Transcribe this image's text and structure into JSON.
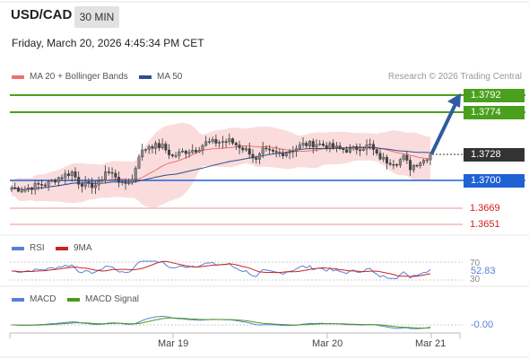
{
  "header": {
    "pair": "USD/CAD",
    "timeframe": "30 MIN",
    "timestamp": "Friday, March 20, 2026 4:45:34 PM CET",
    "credit": "Research © 2026 Trading Central"
  },
  "legend": {
    "ma20": "MA 20 + Bollinger Bands",
    "ma50": "MA 50",
    "rsi": "RSI",
    "ma9": "9MA",
    "macd": "MACD",
    "signal": "MACD Signal"
  },
  "colors": {
    "ma20": "#f07070",
    "ma50": "#2c4f8f",
    "bands": "#fadcdc",
    "resistance": "#4aa01c",
    "pivot": "#1f62d4",
    "support": "#e06b6b",
    "current": "#333333",
    "arrow": "#2e5c9e",
    "rsi": "#5a7fd6",
    "rsi_ma": "#cc2222",
    "macd": "#5a7fd6",
    "macd_signal": "#4a9a1a"
  },
  "chart_data": {
    "type": "candlestick",
    "x_ticks": [
      "Mar 19",
      "Mar 20",
      "Mar 21"
    ],
    "price_range": [
      1.364,
      1.38
    ],
    "levels": {
      "resistance_2": "1.3792",
      "resistance_1": "1.3774",
      "current": "1.3728",
      "pivot": "1.3700",
      "support_1": "1.3669",
      "support_2": "1.3651"
    },
    "close_anchors": [
      [
        0,
        1.3691
      ],
      [
        3,
        1.3689
      ],
      [
        8,
        1.3694
      ],
      [
        11,
        1.3696
      ],
      [
        14,
        1.3702
      ],
      [
        18,
        1.3708
      ],
      [
        20,
        1.3697
      ],
      [
        23,
        1.3693
      ],
      [
        26,
        1.3695
      ],
      [
        28,
        1.3709
      ],
      [
        31,
        1.3704
      ],
      [
        33,
        1.3694
      ],
      [
        36,
        1.37
      ],
      [
        38,
        1.3727
      ],
      [
        41,
        1.3737
      ],
      [
        45,
        1.3736
      ],
      [
        48,
        1.3725
      ],
      [
        51,
        1.373
      ],
      [
        55,
        1.3733
      ],
      [
        58,
        1.374
      ],
      [
        62,
        1.3741
      ],
      [
        65,
        1.3742
      ],
      [
        68,
        1.3736
      ],
      [
        71,
        1.373
      ],
      [
        73,
        1.372
      ],
      [
        75,
        1.3731
      ],
      [
        78,
        1.3729
      ],
      [
        80,
        1.3728
      ],
      [
        83,
        1.3731
      ],
      [
        87,
        1.3738
      ],
      [
        91,
        1.3739
      ],
      [
        95,
        1.3736
      ],
      [
        98,
        1.3733
      ],
      [
        101,
        1.3732
      ],
      [
        104,
        1.3735
      ],
      [
        107,
        1.3737
      ],
      [
        109,
        1.3726
      ],
      [
        112,
        1.372
      ],
      [
        115,
        1.3719
      ],
      [
        117,
        1.3724
      ],
      [
        119,
        1.3713
      ],
      [
        121,
        1.3718
      ],
      [
        123,
        1.3721
      ],
      [
        125,
        1.3728
      ]
    ],
    "rsi": {
      "last": "52.83",
      "levels": [
        "70",
        "30"
      ]
    },
    "macd": {
      "last": "-0.00"
    }
  }
}
